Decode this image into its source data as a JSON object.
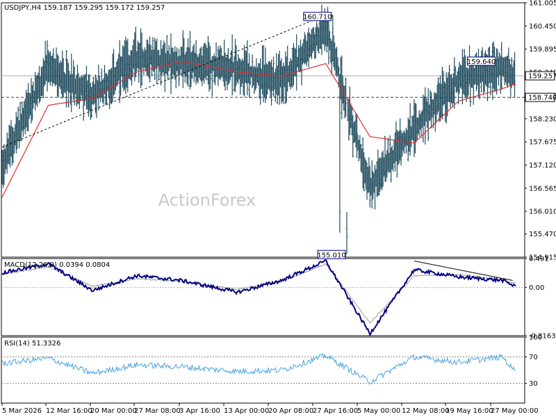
{
  "chart_data": [
    {
      "type": "line",
      "subtype": "ohlc-bars",
      "title": "USDJPY,H4  159.187 159.295 159.172 159.257",
      "symbol": "USDJPY",
      "timeframe": "H4",
      "ohlc_last": {
        "open": 159.187,
        "high": 159.295,
        "low": 159.172,
        "close": 159.257
      },
      "ylim": [
        154.915,
        161.005
      ],
      "y_ticks": [
        "161.005",
        "160.450",
        "159.895",
        "159.340",
        "158.785",
        "158.230",
        "157.675",
        "157.120",
        "156.565",
        "156.010",
        "155.470",
        "154.915"
      ],
      "x_ticks": [
        "5 Mar 2026",
        "12 Mar 16:00",
        "20 Mar 00:00",
        "27 Mar 08:00",
        "3 Apr 16:00",
        "13 Apr 00:00",
        "20 Apr 08:00",
        "27 Apr 16:00",
        "5 May 00:00",
        "12 May 08:00",
        "19 May 16:00",
        "27 May 00:00"
      ],
      "price_anchors": [
        {
          "x_date": "2026-03-05 00:00",
          "close": 157.15
        },
        {
          "x_date": "2026-03-12 16:00",
          "close": 159.45
        },
        {
          "x_date": "2026-03-20 00:00",
          "close": 158.75
        },
        {
          "x_date": "2026-03-27 08:00",
          "close": 159.7
        },
        {
          "x_date": "2026-04-03 16:00",
          "close": 159.55
        },
        {
          "x_date": "2026-04-13 00:00",
          "close": 159.45
        },
        {
          "x_date": "2026-04-20 08:00",
          "close": 159.15
        },
        {
          "x_date": "2026-04-27 16:00",
          "close": 160.4
        },
        {
          "x_date": "2026-05-05 00:00",
          "close": 156.6
        },
        {
          "x_date": "2026-05-12 08:00",
          "close": 158.0
        },
        {
          "x_date": "2026-05-19 16:00",
          "close": 159.2
        },
        {
          "x_date": "2026-05-27 00:00",
          "close": 159.45
        },
        {
          "x_date": "2026-05-28 16:00",
          "close": 159.257
        }
      ],
      "moving_average": [
        {
          "x_date": "2026-03-05 00:00",
          "y": 156.35
        },
        {
          "x_date": "2026-03-12 16:00",
          "y": 158.55
        },
        {
          "x_date": "2026-03-20 00:00",
          "y": 158.72
        },
        {
          "x_date": "2026-03-27 08:00",
          "y": 159.35
        },
        {
          "x_date": "2026-04-03 16:00",
          "y": 159.6
        },
        {
          "x_date": "2026-04-13 00:00",
          "y": 159.35
        },
        {
          "x_date": "2026-04-20 08:00",
          "y": 159.25
        },
        {
          "x_date": "2026-04-27 16:00",
          "y": 159.55
        },
        {
          "x_date": "2026-05-05 00:00",
          "y": 157.8
        },
        {
          "x_date": "2026-05-12 08:00",
          "y": 157.65
        },
        {
          "x_date": "2026-05-19 16:00",
          "y": 158.65
        },
        {
          "x_date": "2026-05-27 00:00",
          "y": 158.95
        },
        {
          "x_date": "2026-05-28 16:00",
          "y": 159.05
        }
      ],
      "trendlines": [
        {
          "style": "dashed",
          "from": {
            "x_date": "2026-03-05 00:00",
            "y": 157.55
          },
          "to": {
            "x_date": "2026-04-27 16:00",
            "y": 160.71
          }
        },
        {
          "style": "dashed",
          "from": {
            "x_date": "2026-03-05 00:00",
            "y": 158.74
          },
          "to": {
            "x_date": "2026-05-28 16:00",
            "y": 158.74
          }
        }
      ],
      "annotations": [
        {
          "text": "160.710",
          "x_date": "2026-04-28 20:00",
          "y": 160.71
        },
        {
          "text": "155.010",
          "x_date": "2026-05-01 04:00",
          "y": 155.01
        },
        {
          "text": "159.640",
          "x_date": "2026-05-26 00:00",
          "y": 159.64
        }
      ],
      "level_tags": [
        {
          "text": "158.740",
          "y": 158.74
        },
        {
          "text": "159.257",
          "y": 159.257
        }
      ],
      "watermark": "ActionForex",
      "colors": {
        "bars": "#1e4a5c",
        "ma": "#e03030",
        "level": "#888888"
      }
    },
    {
      "type": "line",
      "title": "MACD(12,26,9) 0.0394 0.0804",
      "ylim": [
        -0.8163,
        0.491
      ],
      "y_ticks": [
        "0.491",
        "0.00",
        "-0.8163"
      ],
      "macd": [
        {
          "x_date": "2026-03-05 00:00",
          "y": 0.25
        },
        {
          "x_date": "2026-03-12 16:00",
          "y": 0.4
        },
        {
          "x_date": "2026-03-20 00:00",
          "y": -0.05
        },
        {
          "x_date": "2026-03-27 08:00",
          "y": 0.2
        },
        {
          "x_date": "2026-04-03 16:00",
          "y": 0.12
        },
        {
          "x_date": "2026-04-13 00:00",
          "y": -0.08
        },
        {
          "x_date": "2026-04-20 08:00",
          "y": 0.12
        },
        {
          "x_date": "2026-04-27 16:00",
          "y": 0.45
        },
        {
          "x_date": "2026-05-05 00:00",
          "y": -0.78
        },
        {
          "x_date": "2026-05-12 08:00",
          "y": 0.3
        },
        {
          "x_date": "2026-05-19 16:00",
          "y": 0.18
        },
        {
          "x_date": "2026-05-27 00:00",
          "y": 0.12
        },
        {
          "x_date": "2026-05-28 16:00",
          "y": 0.04
        }
      ],
      "signal": [
        {
          "x_date": "2026-03-05 00:00",
          "y": 0.22
        },
        {
          "x_date": "2026-03-12 16:00",
          "y": 0.35
        },
        {
          "x_date": "2026-03-20 00:00",
          "y": 0.02
        },
        {
          "x_date": "2026-03-27 08:00",
          "y": 0.15
        },
        {
          "x_date": "2026-04-03 16:00",
          "y": 0.1
        },
        {
          "x_date": "2026-04-13 00:00",
          "y": -0.03
        },
        {
          "x_date": "2026-04-20 08:00",
          "y": 0.1
        },
        {
          "x_date": "2026-04-27 16:00",
          "y": 0.4
        },
        {
          "x_date": "2026-05-05 00:00",
          "y": -0.6
        },
        {
          "x_date": "2026-05-12 08:00",
          "y": 0.2
        },
        {
          "x_date": "2026-05-19 16:00",
          "y": 0.22
        },
        {
          "x_date": "2026-05-27 00:00",
          "y": 0.13
        },
        {
          "x_date": "2026-05-28 16:00",
          "y": 0.08
        }
      ],
      "trendlines": [
        {
          "style": "solid",
          "from": {
            "x_date": "2026-05-12 08:00",
            "y": 0.45
          },
          "to": {
            "x_date": "2026-05-28 16:00",
            "y": 0.12
          }
        }
      ],
      "colors": {
        "macd": "#000080",
        "signal": "#999999"
      }
    },
    {
      "type": "line",
      "title": "RSI(14) 51.3326",
      "ylim": [
        0,
        100
      ],
      "y_ticks": [
        "100",
        "70",
        "30",
        "0"
      ],
      "levels": [
        70,
        30
      ],
      "rsi": [
        {
          "x_date": "2026-03-05 00:00",
          "y": 60
        },
        {
          "x_date": "2026-03-12 16:00",
          "y": 68
        },
        {
          "x_date": "2026-03-20 00:00",
          "y": 45
        },
        {
          "x_date": "2026-03-27 08:00",
          "y": 58
        },
        {
          "x_date": "2026-04-03 16:00",
          "y": 55
        },
        {
          "x_date": "2026-04-13 00:00",
          "y": 48
        },
        {
          "x_date": "2026-04-20 08:00",
          "y": 50
        },
        {
          "x_date": "2026-04-27 16:00",
          "y": 72
        },
        {
          "x_date": "2026-05-05 00:00",
          "y": 32
        },
        {
          "x_date": "2026-05-12 08:00",
          "y": 70
        },
        {
          "x_date": "2026-05-19 16:00",
          "y": 62
        },
        {
          "x_date": "2026-05-27 00:00",
          "y": 70
        },
        {
          "x_date": "2026-05-28 16:00",
          "y": 51.3326
        }
      ],
      "colors": {
        "rsi": "#4aa3df",
        "level": "#888888"
      }
    }
  ]
}
